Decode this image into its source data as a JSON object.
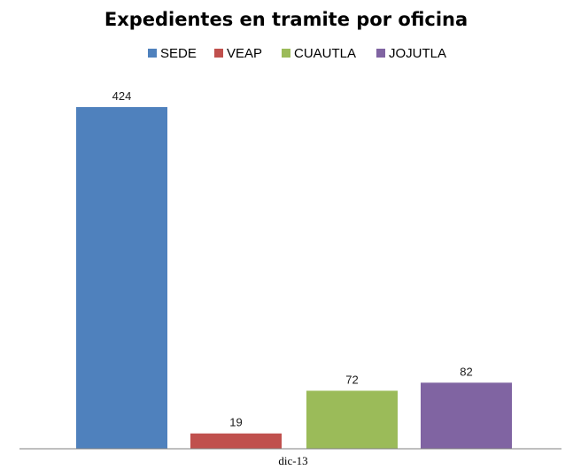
{
  "chart_data": {
    "type": "bar",
    "title": "Expedientes en tramite por oficina",
    "categories": [
      "dic-13"
    ],
    "series": [
      {
        "name": "SEDE",
        "values": [
          424
        ],
        "color": "#4F81BD"
      },
      {
        "name": "VEAP",
        "values": [
          19
        ],
        "color": "#C0504D"
      },
      {
        "name": "CUAUTLA",
        "values": [
          72
        ],
        "color": "#9BBB59"
      },
      {
        "name": "JOJUTLA",
        "values": [
          82
        ],
        "color": "#8064A2"
      }
    ],
    "xlabel": "",
    "ylabel": "",
    "ylim": [
      0,
      450
    ],
    "grid": false,
    "legend_position": "top",
    "data_labels": true
  }
}
